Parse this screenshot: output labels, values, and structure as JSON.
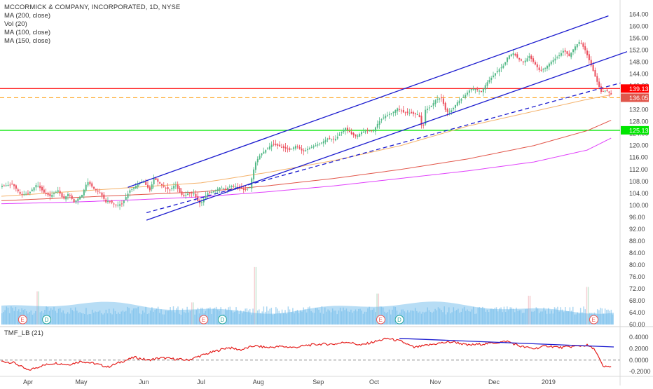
{
  "header": {
    "title": "MCCORMICK & COMPANY, INCORPORATED, 1D, NYSE",
    "indicators": [
      "MA (200, close)",
      "Vol (20)",
      "MA (100, close)",
      "MA (150, close)"
    ],
    "lower_indicator": "TMF_LB (21)"
  },
  "colors": {
    "up_candle": "#53b987",
    "down_candle": "#eb4d5c",
    "channel_line": "#1c1ccf",
    "ma200": "#e040fb",
    "ma100": "#f4b26b",
    "ma150": "#e2564a",
    "resistance": "#ff0000",
    "support": "#00e600",
    "last_price": "#ff9800",
    "volume": "#87c7ee",
    "tmf": "#e5201e"
  },
  "chart_data": [
    {
      "type": "candlestick",
      "name": "MKC daily",
      "x_labels": [
        "Apr",
        "May",
        "Jun",
        "Jul",
        "Aug",
        "Sep",
        "Oct",
        "Nov",
        "Dec",
        "2019"
      ],
      "ylim": [
        60,
        166
      ],
      "y_ticks": [
        "164.00",
        "160.00",
        "156.00",
        "152.00",
        "148.00",
        "144.00",
        "140.00",
        "136.00",
        "132.00",
        "128.00",
        "124.00",
        "120.00",
        "116.00",
        "112.00",
        "108.00",
        "104.00",
        "100.00",
        "96.00",
        "92.00",
        "88.00",
        "84.00",
        "80.00",
        "76.00",
        "72.00",
        "68.00",
        "64.00",
        "60.00"
      ],
      "price_path": [
        [
          0,
          106.5
        ],
        [
          8,
          107
        ],
        [
          14,
          103.5
        ],
        [
          20,
          104
        ],
        [
          26,
          107
        ],
        [
          32,
          104
        ],
        [
          36,
          103
        ],
        [
          42,
          105
        ],
        [
          46,
          102
        ],
        [
          50,
          104
        ],
        [
          54,
          101
        ],
        [
          60,
          103.5
        ],
        [
          64,
          108
        ],
        [
          69,
          105.5
        ],
        [
          74,
          104
        ],
        [
          78,
          101
        ],
        [
          80,
          101.5
        ],
        [
          86,
          100
        ],
        [
          90,
          100.5
        ],
        [
          96,
          105
        ],
        [
          102,
          107
        ],
        [
          106,
          108
        ],
        [
          111,
          105
        ],
        [
          114,
          109
        ],
        [
          118,
          107.5
        ],
        [
          122,
          106
        ],
        [
          126,
          105
        ],
        [
          130,
          107
        ],
        [
          134,
          104
        ],
        [
          136,
          103
        ],
        [
          140,
          104
        ],
        [
          144,
          104
        ],
        [
          148,
          100.5
        ],
        [
          150,
          101
        ],
        [
          154,
          104
        ],
        [
          158,
          104.5
        ],
        [
          164,
          106
        ],
        [
          168,
          105.5
        ],
        [
          172,
          106.5
        ],
        [
          178,
          106
        ],
        [
          182,
          105
        ],
        [
          186,
          106
        ],
        [
          190,
          114
        ],
        [
          194,
          117
        ],
        [
          198,
          118.5
        ],
        [
          203,
          120.5
        ],
        [
          210,
          119.5
        ],
        [
          216,
          118.5
        ],
        [
          221,
          120
        ],
        [
          226,
          118
        ],
        [
          230,
          119
        ],
        [
          235,
          120
        ],
        [
          240,
          121
        ],
        [
          245,
          122.5
        ],
        [
          250,
          122
        ],
        [
          255,
          124.5
        ],
        [
          258,
          126
        ],
        [
          262,
          124
        ],
        [
          266,
          123
        ],
        [
          270,
          124.5
        ],
        [
          275,
          125
        ],
        [
          279,
          125
        ],
        [
          283,
          128
        ],
        [
          288,
          130
        ],
        [
          293,
          131
        ],
        [
          297,
          132.5
        ],
        [
          302,
          131
        ],
        [
          306,
          131
        ],
        [
          310,
          130.5
        ],
        [
          313,
          130.5
        ],
        [
          316,
          125
        ],
        [
          318,
          132
        ],
        [
          322,
          133
        ],
        [
          326,
          135.5
        ],
        [
          330,
          136
        ],
        [
          333,
          132
        ],
        [
          335,
          131
        ],
        [
          338,
          132
        ],
        [
          342,
          134.5
        ],
        [
          346,
          136
        ],
        [
          352,
          139
        ],
        [
          356,
          139
        ],
        [
          360,
          138
        ],
        [
          364,
          141
        ],
        [
          368,
          143
        ],
        [
          372,
          145
        ],
        [
          377,
          147
        ],
        [
          380,
          150
        ],
        [
          384,
          151
        ],
        [
          388,
          149
        ],
        [
          392,
          148
        ],
        [
          396,
          150
        ],
        [
          400,
          147.5
        ],
        [
          404,
          145
        ],
        [
          408,
          146
        ],
        [
          412,
          148
        ],
        [
          418,
          150
        ],
        [
          422,
          152
        ],
        [
          426,
          150
        ],
        [
          430,
          153
        ],
        [
          434,
          155
        ],
        [
          438,
          152
        ],
        [
          442,
          147.5
        ],
        [
          446,
          142.5
        ],
        [
          450,
          138
        ],
        [
          454,
          138.5
        ],
        [
          458,
          137
        ]
      ],
      "resistance_level": 139.13,
      "resistance_label": "139.13",
      "support_level": 125.13,
      "support_label": "125.13",
      "last_price": 136.05,
      "last_price_label": "136.05",
      "ma100": [
        [
          0,
          103
        ],
        [
          50,
          104.5
        ],
        [
          100,
          106
        ],
        [
          150,
          107.5
        ],
        [
          200,
          111
        ],
        [
          250,
          115
        ],
        [
          300,
          120
        ],
        [
          350,
          126.5
        ],
        [
          400,
          131.5
        ],
        [
          440,
          135.5
        ],
        [
          458,
          137
        ]
      ],
      "ma150": [
        [
          0,
          101.5
        ],
        [
          50,
          102.5
        ],
        [
          100,
          103.5
        ],
        [
          150,
          104.5
        ],
        [
          200,
          106.5
        ],
        [
          250,
          109
        ],
        [
          300,
          112
        ],
        [
          350,
          115.5
        ],
        [
          400,
          120
        ],
        [
          440,
          125
        ],
        [
          458,
          128.5
        ]
      ],
      "ma200": [
        [
          0,
          100.5
        ],
        [
          50,
          101
        ],
        [
          100,
          101.8
        ],
        [
          150,
          102.8
        ],
        [
          200,
          104.5
        ],
        [
          250,
          106.5
        ],
        [
          300,
          109
        ],
        [
          350,
          111.5
        ],
        [
          400,
          114.5
        ],
        [
          440,
          118.5
        ],
        [
          458,
          122.5
        ]
      ],
      "channel_upper": [
        [
          95,
          106
        ],
        [
          456,
          163.5
        ]
      ],
      "channel_middle": [
        [
          109,
          95
        ],
        [
          470,
          151.5
        ]
      ],
      "channel_lower_dashed": [
        [
          109,
          97.5
        ],
        [
          465,
          141
        ]
      ],
      "earnings_markers": [
        "E",
        "D",
        "E",
        "D",
        "E",
        "D",
        "E"
      ],
      "volume_spikes": [
        [
          27,
          75
        ],
        [
          190,
          86
        ],
        [
          143,
          70
        ],
        [
          282,
          74
        ],
        [
          396,
          73
        ],
        [
          440,
          77
        ]
      ],
      "volume_ylim": [
        60,
        98
      ]
    },
    {
      "type": "line",
      "name": "TMF_LB (21)",
      "ylim": [
        -0.26,
        0.5
      ],
      "y_ticks": [
        "0.4000",
        "0.2000",
        "0.0000",
        "-0.2000"
      ],
      "zero_line": 0.0,
      "values": [
        [
          0,
          -0.02
        ],
        [
          10,
          -0.05
        ],
        [
          20,
          -0.18
        ],
        [
          30,
          -0.1
        ],
        [
          40,
          -0.05
        ],
        [
          50,
          -0.08
        ],
        [
          60,
          -0.02
        ],
        [
          70,
          -0.06
        ],
        [
          80,
          -0.12
        ],
        [
          90,
          -0.03
        ],
        [
          100,
          0.05
        ],
        [
          110,
          0.0
        ],
        [
          120,
          0.04
        ],
        [
          130,
          0.02
        ],
        [
          140,
          0.0
        ],
        [
          150,
          0.08
        ],
        [
          160,
          0.15
        ],
        [
          170,
          0.22
        ],
        [
          180,
          0.18
        ],
        [
          190,
          0.25
        ],
        [
          200,
          0.22
        ],
        [
          210,
          0.24
        ],
        [
          220,
          0.22
        ],
        [
          230,
          0.26
        ],
        [
          240,
          0.28
        ],
        [
          250,
          0.28
        ],
        [
          260,
          0.32
        ],
        [
          270,
          0.26
        ],
        [
          280,
          0.32
        ],
        [
          290,
          0.38
        ],
        [
          300,
          0.33
        ],
        [
          310,
          0.22
        ],
        [
          320,
          0.26
        ],
        [
          330,
          0.3
        ],
        [
          340,
          0.32
        ],
        [
          350,
          0.26
        ],
        [
          360,
          0.28
        ],
        [
          370,
          0.3
        ],
        [
          380,
          0.33
        ],
        [
          390,
          0.24
        ],
        [
          400,
          0.2
        ],
        [
          410,
          0.25
        ],
        [
          420,
          0.22
        ],
        [
          430,
          0.24
        ],
        [
          440,
          0.26
        ],
        [
          446,
          0.18
        ],
        [
          452,
          -0.12
        ],
        [
          458,
          -0.11
        ]
      ],
      "divergence_line": [
        [
          299,
          0.38
        ],
        [
          460,
          0.23
        ]
      ]
    }
  ]
}
